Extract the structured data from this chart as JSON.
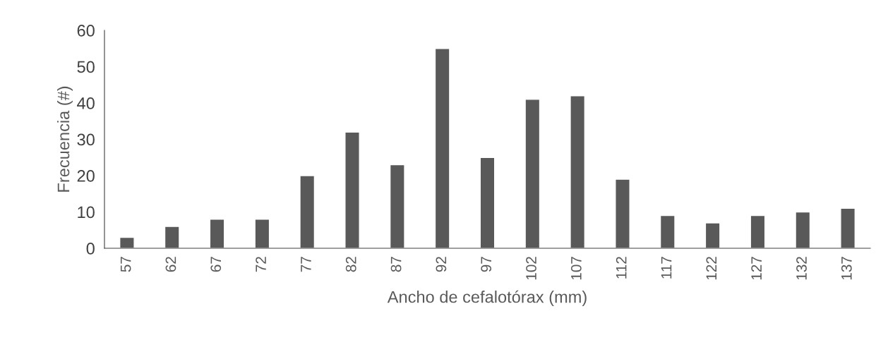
{
  "chart_data": {
    "type": "bar",
    "xlabel": "Ancho de cefalotórax (mm)",
    "ylabel": "Frecuencia (#)",
    "categories": [
      "57",
      "62",
      "67",
      "72",
      "77",
      "82",
      "87",
      "92",
      "97",
      "102",
      "107",
      "112",
      "117",
      "122",
      "127",
      "132",
      "137"
    ],
    "values": [
      3,
      6,
      8,
      8,
      20,
      32,
      23,
      55,
      25,
      41,
      42,
      19,
      9,
      7,
      9,
      10,
      11
    ],
    "color": "#595959",
    "ylim": [
      0,
      60
    ],
    "yticks": [
      0,
      10,
      20,
      30,
      40,
      50,
      60
    ],
    "grid": false
  }
}
